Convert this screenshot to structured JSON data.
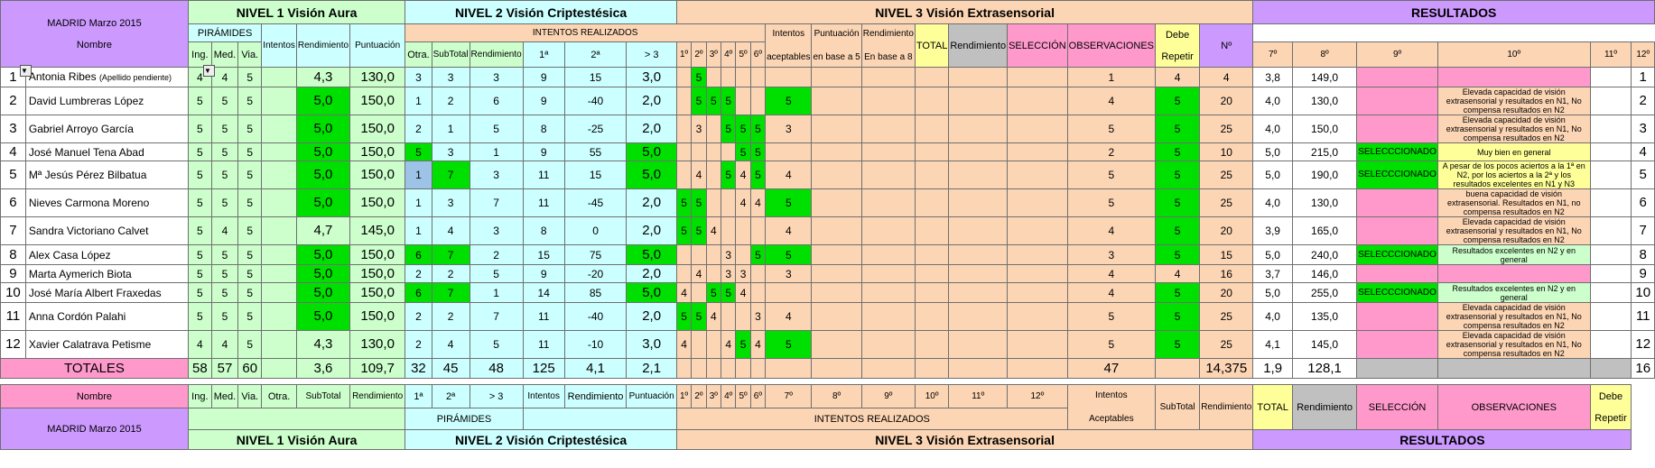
{
  "header": {
    "location": "MADRID Marzo 2015",
    "nombre": "Nombre",
    "nivel1": "NIVEL 1  Visión Aura",
    "nivel2": "NIVEL 2  Visión  Criptestésica",
    "nivel3": "NIVEL 3  Visión  Extrasensorial",
    "resultados": "RESULTADOS",
    "piramides": "PIRÁMIDES",
    "intentos_realizados": "INTENTOS REALIZADOS",
    "intentos_aceptables_1": "Intentos",
    "intentos_aceptables_2": "aceptables",
    "puntuacion_base5_1": "Puntuación",
    "puntuacion_base5_2": "en base a 5",
    "rendimiento_base8_1": "Rendimiento",
    "rendimiento_base8_2": "En base a 8",
    "total": "TOTAL",
    "rendimiento": "Rendimiento",
    "seleccion": "SELECCIÓN",
    "observaciones": "OBSERVACIONES",
    "debe_1": "Debe",
    "debe_2": "Repetir",
    "num": "Nº",
    "ing": "Ing.",
    "med": "Med.",
    "via": "Via.",
    "otra": "Otra.",
    "subtotal": "SubTotal",
    "p1": "1ª",
    "p2": "2ª",
    "p3": "> 3",
    "intentos": "Intentos",
    "puntuacion": "Puntuación",
    "intentos_cols": [
      "1º",
      "2º",
      "3º",
      "4º",
      "5º",
      "6º",
      "7º",
      "8º",
      "9º",
      "10º",
      "11º",
      "12º"
    ]
  },
  "rows": [
    {
      "n": "1",
      "name": "Antonia Ribes",
      "note": "(Apellido pendiente)",
      "ing": "4",
      "med": "4",
      "via": "5",
      "otra": "",
      "sub": "4,3",
      "rend": "130,0",
      "p1": "3",
      "p2": "3",
      "p3": "3",
      "int": "9",
      "rend2": "15",
      "punt": "3,0",
      "tries": [
        "",
        "5",
        "",
        "",
        "",
        "",
        "",
        "",
        "",
        "",
        "",
        ""
      ],
      "acept": "1",
      "p5": "4",
      "r8": "4",
      "total": "3,8",
      "rend3": "149,0",
      "sel": "",
      "obs": "",
      "n2": "1"
    },
    {
      "n": "2",
      "name": "David Lumbreras López",
      "note": "",
      "ing": "5",
      "med": "5",
      "via": "5",
      "otra": "",
      "sub": "5,0",
      "rend": "150,0",
      "p1": "1",
      "p2": "2",
      "p3": "6",
      "int": "9",
      "rend2": "-40",
      "punt": "2,0",
      "tries": [
        "",
        "5",
        "5",
        "5",
        "",
        "",
        "5",
        "",
        "",
        "",
        "",
        ""
      ],
      "acept": "4",
      "p5": "5",
      "r8": "20",
      "total": "4,0",
      "rend3": "130,0",
      "sel": "",
      "obs": "Elevada capacidad de visión extrasensorial y resultados en N1, No compensa resultados en N2",
      "n2": "2"
    },
    {
      "n": "3",
      "name": "Gabriel Arroyo García",
      "note": "",
      "ing": "5",
      "med": "5",
      "via": "5",
      "otra": "",
      "sub": "5,0",
      "rend": "150,0",
      "p1": "2",
      "p2": "1",
      "p3": "5",
      "int": "8",
      "rend2": "-25",
      "punt": "2,0",
      "tries": [
        "",
        "3",
        "",
        "5",
        "5",
        "5",
        "3",
        "",
        "",
        "",
        "",
        ""
      ],
      "acept": "5",
      "p5": "5",
      "r8": "25",
      "total": "4,0",
      "rend3": "150,0",
      "sel": "",
      "obs": "Elevada capacidad de visión extrasensorial y resultados en N1, No compensa resultados en N2",
      "n2": "3"
    },
    {
      "n": "4",
      "name": "José Manuel Tena Abad",
      "note": "",
      "ing": "5",
      "med": "5",
      "via": "5",
      "otra": "",
      "sub": "5,0",
      "rend": "150,0",
      "p1": "5",
      "p2": "3",
      "p3": "1",
      "int": "9",
      "rend2": "55",
      "punt": "5,0",
      "tries": [
        "",
        "",
        "",
        "",
        "5",
        "5",
        "",
        "",
        "",
        "",
        "",
        ""
      ],
      "acept": "2",
      "p5": "5",
      "r8": "10",
      "total": "5,0",
      "rend3": "215,0",
      "sel": "SELECCCIONADO",
      "obs": "Muy bien en general",
      "n2": "4"
    },
    {
      "n": "5",
      "name": "Mª Jesús Pérez Bilbatua",
      "note": "",
      "ing": "5",
      "med": "5",
      "via": "5",
      "otra": "",
      "sub": "5,0",
      "rend": "150,0",
      "p1": "1",
      "p2": "7",
      "p3": "3",
      "int": "11",
      "rend2": "15",
      "punt": "5,0",
      "tries": [
        "",
        "4",
        "",
        "5",
        "4",
        "5",
        "4",
        "",
        "",
        "",
        "",
        ""
      ],
      "acept": "5",
      "p5": "5",
      "r8": "25",
      "total": "5,0",
      "rend3": "190,0",
      "sel": "SELECCCIONADO",
      "obs": "A pesar de los pocos aciertos a la 1ª en N2, por los aciertos a la 2ª y los resultados excelentes en N1 y N3",
      "n2": "5"
    },
    {
      "n": "6",
      "name": "Nieves Carmona Moreno",
      "note": "",
      "ing": "5",
      "med": "5",
      "via": "5",
      "otra": "",
      "sub": "5,0",
      "rend": "150,0",
      "p1": "1",
      "p2": "3",
      "p3": "7",
      "int": "11",
      "rend2": "-45",
      "punt": "2,0",
      "tries": [
        "5",
        "5",
        "",
        "",
        "4",
        "4",
        "5",
        "",
        "",
        "",
        "",
        ""
      ],
      "acept": "5",
      "p5": "5",
      "r8": "25",
      "total": "4,0",
      "rend3": "130,0",
      "sel": "",
      "obs": "buena capacidad de visión extrasensorial.  Resultados en N1, no compensa resultados en N2",
      "n2": "6"
    },
    {
      "n": "7",
      "name": "Sandra Victoriano Calvet",
      "note": "",
      "ing": "5",
      "med": "4",
      "via": "5",
      "otra": "",
      "sub": "4,7",
      "rend": "145,0",
      "p1": "1",
      "p2": "4",
      "p3": "3",
      "int": "8",
      "rend2": "0",
      "punt": "2,0",
      "tries": [
        "5",
        "5",
        "4",
        "",
        "",
        "",
        "4",
        "",
        "",
        "",
        "",
        ""
      ],
      "acept": "4",
      "p5": "5",
      "r8": "20",
      "total": "3,9",
      "rend3": "165,0",
      "sel": "",
      "obs": "Elevada capacidad de visión extrasensorial y resultados en N1, No compensa resultados en N2",
      "n2": "7"
    },
    {
      "n": "8",
      "name": "Alex Casa López",
      "note": "",
      "ing": "5",
      "med": "5",
      "via": "5",
      "otra": "",
      "sub": "5,0",
      "rend": "150,0",
      "p1": "6",
      "p2": "7",
      "p3": "2",
      "int": "15",
      "rend2": "75",
      "punt": "5,0",
      "tries": [
        "",
        "",
        "",
        "3",
        "",
        "5",
        "5",
        "",
        "",
        "",
        "",
        ""
      ],
      "acept": "3",
      "p5": "5",
      "r8": "15",
      "total": "5,0",
      "rend3": "240,0",
      "sel": "SELECCCIONADO",
      "obs": "Resultados excelentes en N2 y en general",
      "n2": "8"
    },
    {
      "n": "9",
      "name": "Marta Aymerich Biota",
      "note": "",
      "ing": "5",
      "med": "5",
      "via": "5",
      "otra": "",
      "sub": "5,0",
      "rend": "150,0",
      "p1": "2",
      "p2": "2",
      "p3": "5",
      "int": "9",
      "rend2": "-20",
      "punt": "2,0",
      "tries": [
        "",
        "4",
        "",
        "3",
        "3",
        "",
        "3",
        "",
        "",
        "",
        "",
        ""
      ],
      "acept": "4",
      "p5": "4",
      "r8": "16",
      "total": "3,7",
      "rend3": "146,0",
      "sel": "",
      "obs": "",
      "n2": "9"
    },
    {
      "n": "10",
      "name": "José María Albert Fraxedas",
      "note": "",
      "ing": "5",
      "med": "5",
      "via": "5",
      "otra": "",
      "sub": "5,0",
      "rend": "150,0",
      "p1": "6",
      "p2": "7",
      "p3": "1",
      "int": "14",
      "rend2": "85",
      "punt": "5,0",
      "tries": [
        "4",
        "",
        "5",
        "5",
        "4",
        "",
        "",
        "",
        "",
        "",
        "",
        ""
      ],
      "acept": "4",
      "p5": "5",
      "r8": "20",
      "total": "5,0",
      "rend3": "255,0",
      "sel": "SELECCCIONADO",
      "obs": "Resultados excelentes en N2 y en general",
      "n2": "10"
    },
    {
      "n": "11",
      "name": "Anna Cordón Palahi",
      "note": "",
      "ing": "5",
      "med": "5",
      "via": "5",
      "otra": "",
      "sub": "5,0",
      "rend": "150,0",
      "p1": "2",
      "p2": "2",
      "p3": "7",
      "int": "11",
      "rend2": "-40",
      "punt": "2,0",
      "tries": [
        "5",
        "5",
        "4",
        "",
        "",
        "3",
        "4",
        "",
        "",
        "",
        "",
        ""
      ],
      "acept": "5",
      "p5": "5",
      "r8": "25",
      "total": "4,0",
      "rend3": "135,0",
      "sel": "",
      "obs": "Elevada capacidad de visión extrasensorial y resultados en N1, No compensa resultados en N2",
      "n2": "11"
    },
    {
      "n": "12",
      "name": "Xavier Calatrava Petisme",
      "note": "",
      "ing": "4",
      "med": "4",
      "via": "5",
      "otra": "",
      "sub": "4,3",
      "rend": "130,0",
      "p1": "2",
      "p2": "4",
      "p3": "5",
      "int": "11",
      "rend2": "-10",
      "punt": "3,0",
      "tries": [
        "4",
        "",
        "",
        "4",
        "5",
        "4",
        "5",
        "",
        "",
        "",
        "",
        ""
      ],
      "acept": "5",
      "p5": "5",
      "r8": "25",
      "total": "4,1",
      "rend3": "145,0",
      "sel": "",
      "obs": "Elevada capacidad de visión extrasensorial y resultados en N1, No compensa resultados en N2",
      "n2": "12"
    }
  ],
  "totals": {
    "label": "TOTALES",
    "ing": "58",
    "med": "57",
    "via": "60",
    "sub": "3,6",
    "rend": "109,7",
    "p1": "32",
    "p2": "45",
    "p3": "48",
    "int": "125",
    "rend2": "4,1",
    "punt": "2,1",
    "acept": "47",
    "r8": "14,375",
    "total": "1,9",
    "rend3": "128,1",
    "n2": "16"
  },
  "footer": {
    "acept_1": "Intentos",
    "acept_2": "Aceptables",
    "subtotal": "SubTotal",
    "rendimiento": "Rendimiento"
  },
  "colors": {
    "lilac": "#cc99ff",
    "pink": "#ff99cc",
    "light_green": "#ccffcc",
    "cyan": "#ccffff",
    "peach": "#fcd5b4",
    "green": "#00e000",
    "blue": "#9dc3e6",
    "yellow": "#ffff99",
    "gray": "#c0c0c0"
  }
}
